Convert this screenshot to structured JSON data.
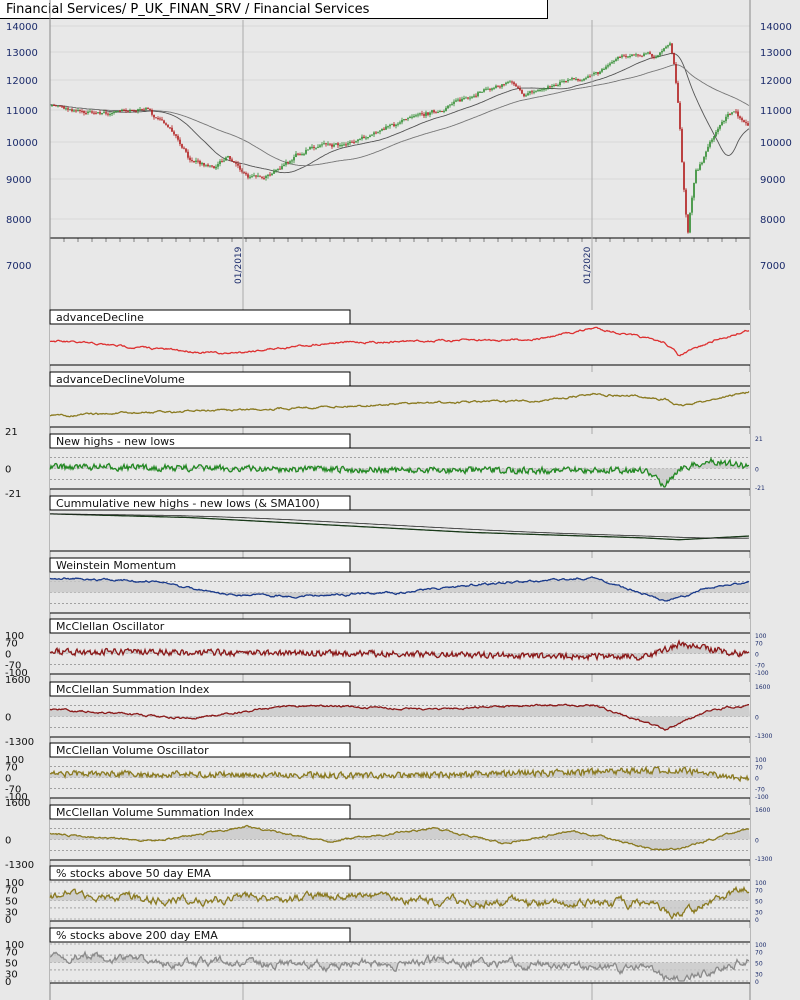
{
  "header": {
    "title": "Financial Services/ P_UK_FINAN_SRV / Financial Services"
  },
  "colors": {
    "up": "#2a8a2a",
    "down": "#b01818",
    "red": "#dd3030",
    "olive": "#8a7a20",
    "green": "#228822",
    "navy": "#1a3a8a",
    "maroon": "#8a1818",
    "gray": "#8a8a8a"
  },
  "chart_data": {
    "type": "line",
    "main": {
      "kind": "candlestick",
      "y_ticks": [
        "14000",
        "13000",
        "12000",
        "11000",
        "10000",
        "9000",
        "8000",
        "7000"
      ],
      "x_ticks": [
        "01/2019",
        "01/2020"
      ],
      "ylim": [
        7000,
        14000
      ],
      "price_path": [
        [
          0,
          11200
        ],
        [
          0.04,
          10950
        ],
        [
          0.1,
          10900
        ],
        [
          0.16,
          11050
        ],
        [
          0.2,
          10500
        ],
        [
          0.24,
          9450
        ],
        [
          0.28,
          9300
        ],
        [
          0.3,
          9600
        ],
        [
          0.34,
          9000
        ],
        [
          0.38,
          9200
        ],
        [
          0.42,
          9700
        ],
        [
          0.46,
          9900
        ],
        [
          0.5,
          9900
        ],
        [
          0.55,
          10300
        ],
        [
          0.6,
          10700
        ],
        [
          0.66,
          11000
        ],
        [
          0.7,
          11400
        ],
        [
          0.74,
          11700
        ],
        [
          0.78,
          11900
        ],
        [
          0.8,
          11500
        ],
        [
          0.85,
          11800
        ],
        [
          0.88,
          12100
        ],
        [
          0.9,
          12000
        ],
        [
          0.93,
          12300
        ],
        [
          0.96,
          12800
        ],
        [
          1.0,
          12900
        ]
      ],
      "price_path2": [
        [
          0,
          12900
        ],
        [
          0.06,
          13000
        ],
        [
          0.12,
          12800
        ],
        [
          0.2,
          13050
        ],
        [
          0.26,
          13400
        ],
        [
          0.3,
          12500
        ],
        [
          0.34,
          11000
        ],
        [
          0.38,
          9000
        ],
        [
          0.42,
          7600
        ],
        [
          0.46,
          8500
        ],
        [
          0.5,
          9200
        ],
        [
          0.56,
          9500
        ],
        [
          0.62,
          9900
        ],
        [
          0.7,
          10400
        ],
        [
          0.78,
          10800
        ],
        [
          0.86,
          11000
        ],
        [
          0.92,
          10700
        ],
        [
          1.0,
          10400
        ]
      ]
    },
    "panels": [
      {
        "label": "advanceDecline",
        "color": "red",
        "kind": "line"
      },
      {
        "label": "advanceDeclineVolume",
        "color": "olive",
        "kind": "line"
      },
      {
        "label": "New highs - new lows",
        "color": "green",
        "kind": "osc",
        "left_ticks": [
          "21",
          "0",
          "-21"
        ],
        "right_ticks": [
          "21",
          "0",
          "-21"
        ]
      },
      {
        "label": "Cummulative new highs - new lows (& SMA100)",
        "color": "dark",
        "kind": "cum"
      },
      {
        "label": "Weinstein Momentum",
        "color": "navy",
        "kind": "osc"
      },
      {
        "label": "McClellan Oscillator",
        "color": "maroon",
        "kind": "osc",
        "left_ticks": [
          "100",
          "70",
          "0",
          "-70",
          "-100"
        ],
        "right_ticks": [
          "100",
          "70",
          "0",
          "-70",
          "-100"
        ]
      },
      {
        "label": "McClellan Summation Index",
        "color": "maroon",
        "kind": "osc",
        "left_ticks": [
          "1600",
          "0",
          "-1300"
        ],
        "right_ticks": [
          "1600",
          "0",
          "-1300"
        ]
      },
      {
        "label": "McClellan Volume Oscillator",
        "color": "olive",
        "kind": "osc",
        "left_ticks": [
          "100",
          "70",
          "0",
          "-70",
          "-100"
        ],
        "right_ticks": [
          "100",
          "70",
          "0",
          "-70",
          "-100"
        ]
      },
      {
        "label": "McClellan Volume Summation Index",
        "color": "olive",
        "kind": "osc",
        "left_ticks": [
          "1600",
          "0",
          "-1300"
        ],
        "right_ticks": [
          "1600",
          "0",
          "-1300"
        ]
      },
      {
        "label": "% stocks above 50 day EMA",
        "color": "olive",
        "kind": "pct",
        "left_ticks": [
          "100",
          "70",
          "50",
          "30",
          "0"
        ],
        "right_ticks": [
          "100",
          "70",
          "50",
          "30",
          "0"
        ]
      },
      {
        "label": "% stocks above 200 day EMA",
        "color": "gray",
        "kind": "pct",
        "left_ticks": [
          "100",
          "70",
          "50",
          "30",
          "0"
        ],
        "right_ticks": [
          "100",
          "70",
          "50",
          "30",
          "0"
        ]
      }
    ]
  }
}
